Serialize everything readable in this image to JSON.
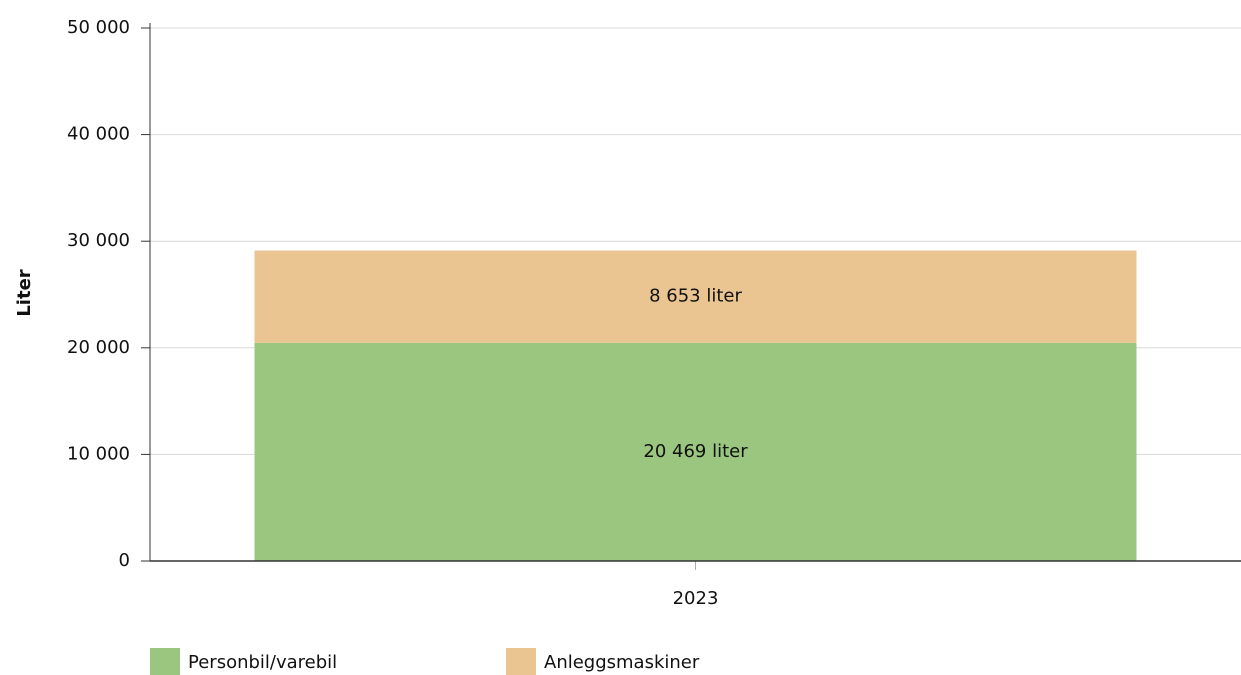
{
  "chart_data": {
    "type": "stacked_bar",
    "categories": [
      "2023"
    ],
    "ylabel": "Liter",
    "series": [
      {
        "name": "Personbil/varebil",
        "color": "#9bc67f",
        "values": [
          20469
        ],
        "value_labels": [
          "20 469 liter"
        ]
      },
      {
        "name": "Anleggsmaskiner",
        "color": "#eac591",
        "values": [
          8653
        ],
        "value_labels": [
          "8 653 liter"
        ]
      }
    ],
    "ylim": [
      0,
      50000
    ],
    "yticks": [
      0,
      {
        "value": 10000,
        "label": "10 000"
      },
      {
        "value": 20000,
        "label": "20 000"
      },
      {
        "value": 30000,
        "label": "30 000"
      },
      {
        "value": 40000,
        "label": "40 000"
      },
      {
        "value": 50000,
        "label": "50 000"
      }
    ],
    "grid": true,
    "legend": "bottom"
  }
}
